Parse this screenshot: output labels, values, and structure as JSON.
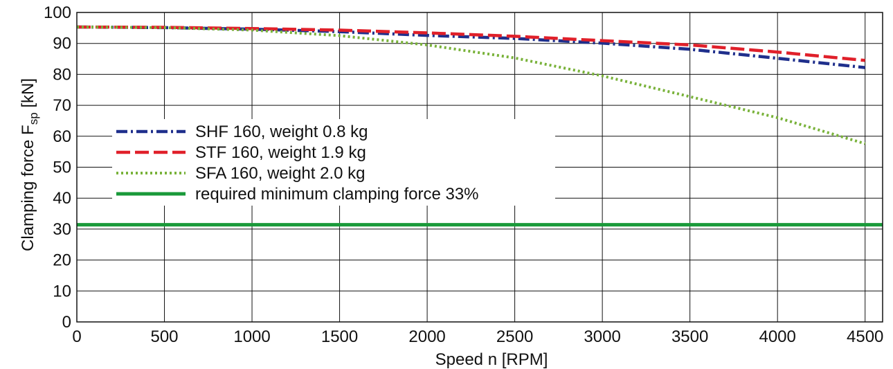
{
  "chart_data": {
    "type": "line",
    "xlabel": "Speed n [RPM]",
    "ylabel": "Clamping force F",
    "ylabel_subscript": "sp",
    "ylabel_unit": " [kN]",
    "xlim": [
      0,
      4600
    ],
    "ylim": [
      0,
      100
    ],
    "xticks": [
      0,
      500,
      1000,
      1500,
      2000,
      2500,
      3000,
      3500,
      4000,
      4500
    ],
    "yticks": [
      0,
      10,
      20,
      30,
      40,
      50,
      60,
      70,
      80,
      90,
      100
    ],
    "grid": true,
    "legend_position": "left-middle",
    "series": [
      {
        "name": "SHF 160, weight 0.8 kg",
        "color": "#1f2f8c",
        "style": "dash-dot",
        "x": [
          0,
          500,
          1000,
          1500,
          2000,
          2500,
          3000,
          3500,
          4000,
          4500
        ],
        "y": [
          95.3,
          95.1,
          94.6,
          93.8,
          92.6,
          91.6,
          90.1,
          88.1,
          85.2,
          82.2
        ]
      },
      {
        "name": "STF 160, weight 1.9 kg",
        "color": "#e0202a",
        "style": "dashed",
        "x": [
          0,
          500,
          1000,
          1500,
          2000,
          2500,
          3000,
          3500,
          4000,
          4500
        ],
        "y": [
          95.3,
          95.2,
          94.8,
          94.3,
          93.4,
          92.3,
          90.9,
          89.5,
          87.2,
          84.5
        ]
      },
      {
        "name": "SFA 160, weight 2.0 kg",
        "color": "#79b23a",
        "style": "dotted",
        "x": [
          0,
          500,
          1000,
          1500,
          2000,
          2500,
          3000,
          3500,
          4000,
          4500
        ],
        "y": [
          95.3,
          95.1,
          94.3,
          92.5,
          89.5,
          85.3,
          79.5,
          72.8,
          66.0,
          57.6
        ]
      },
      {
        "name": "required minimum clamping force 33%",
        "color": "#1a9a3a",
        "style": "solid",
        "x": [
          0,
          4600
        ],
        "y": [
          31.4,
          31.4
        ]
      }
    ]
  }
}
